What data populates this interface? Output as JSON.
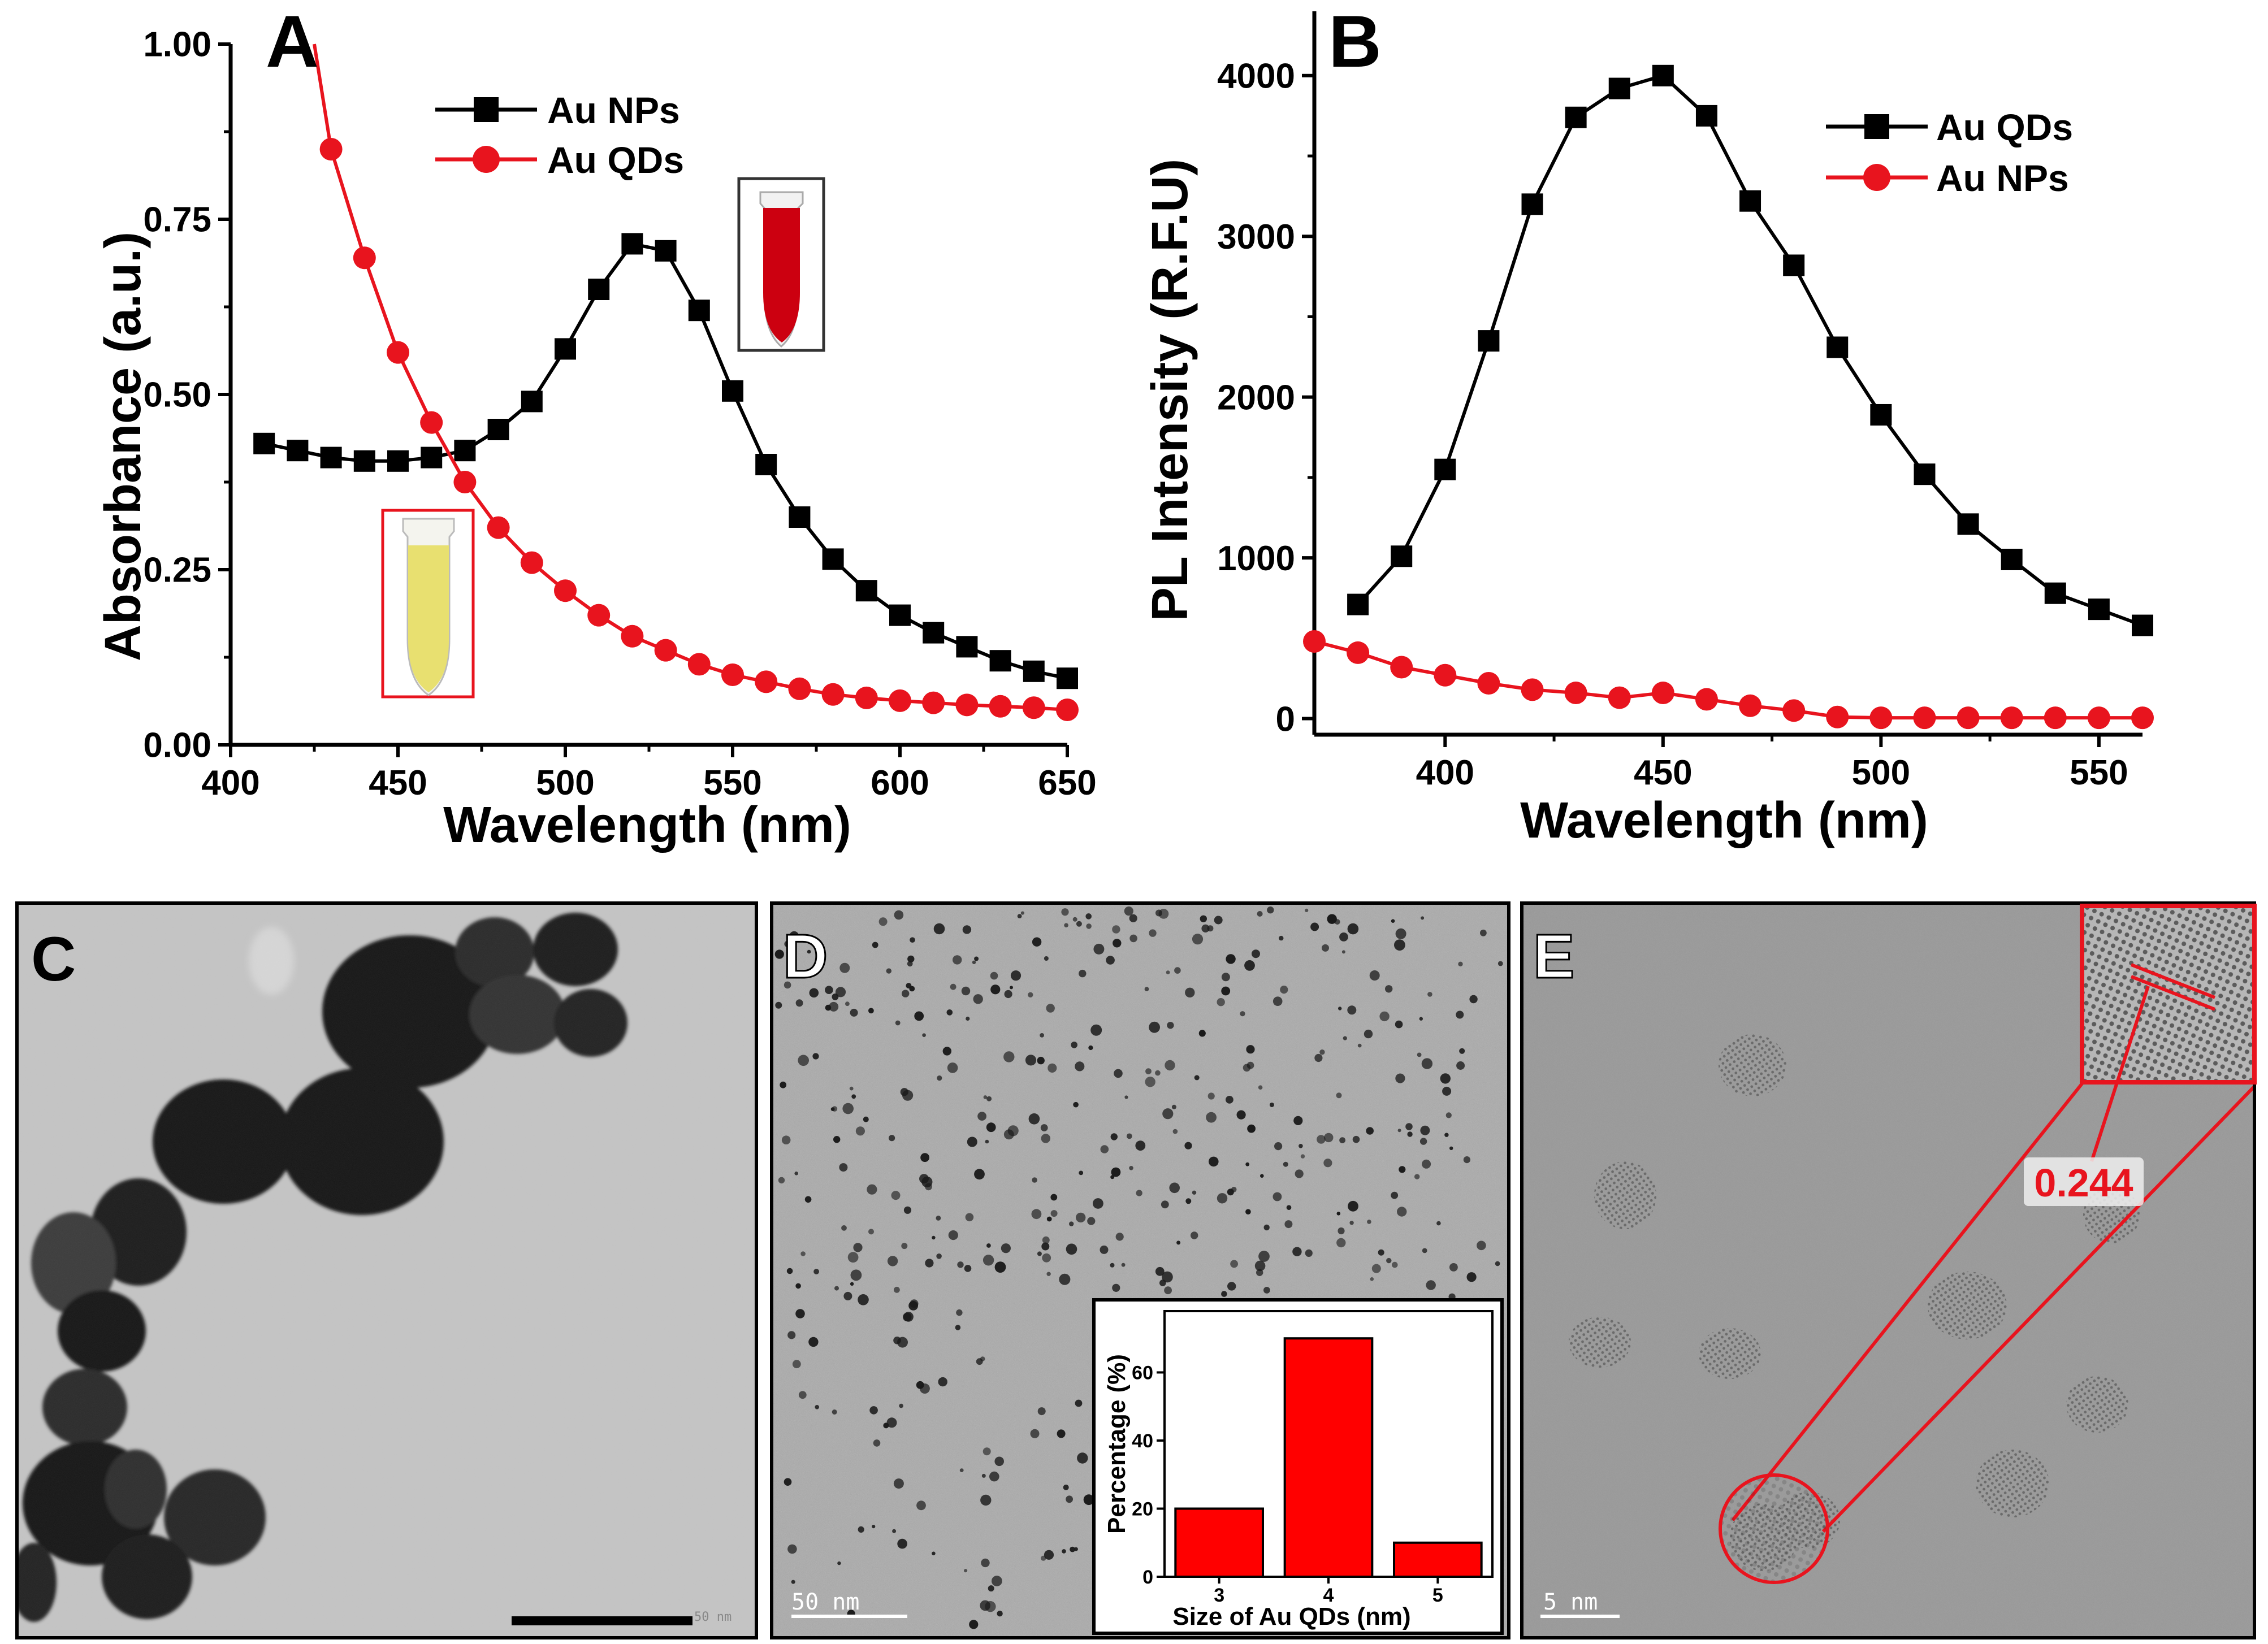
{
  "panels": {
    "A": "A",
    "B": "B",
    "C": "C",
    "D": "D",
    "E": "E"
  },
  "chart_data": [
    {
      "id": "A",
      "type": "line",
      "xlabel": "Wavelength (nm)",
      "ylabel": "Absorbance (a.u.)",
      "xlim": [
        400,
        650
      ],
      "ylim": [
        0,
        1.0
      ],
      "xticks": [
        "400",
        "450",
        "500",
        "550",
        "600",
        "650"
      ],
      "yticks": [
        "0.00",
        "0.25",
        "0.50",
        "0.75",
        "1.00"
      ],
      "legend": [
        "Au NPs",
        "Au QDs"
      ],
      "series": [
        {
          "name": "Au NPs",
          "color": "#000000",
          "marker": "square",
          "x": [
            410,
            420,
            430,
            440,
            450,
            460,
            470,
            480,
            490,
            500,
            510,
            520,
            530,
            540,
            550,
            560,
            570,
            580,
            590,
            600,
            610,
            620,
            630,
            640,
            650
          ],
          "y": [
            0.43,
            0.42,
            0.41,
            0.405,
            0.405,
            0.41,
            0.42,
            0.45,
            0.49,
            0.565,
            0.65,
            0.715,
            0.705,
            0.62,
            0.505,
            0.4,
            0.325,
            0.265,
            0.22,
            0.185,
            0.16,
            0.14,
            0.12,
            0.105,
            0.095
          ]
        },
        {
          "name": "Au QDs",
          "color": "#e8141e",
          "marker": "circle",
          "x": [
            430,
            440,
            450,
            460,
            470,
            480,
            490,
            500,
            510,
            520,
            530,
            540,
            550,
            560,
            570,
            580,
            590,
            600,
            610,
            620,
            630,
            640,
            650
          ],
          "y": [
            0.85,
            0.695,
            0.56,
            0.46,
            0.375,
            0.31,
            0.26,
            0.22,
            0.185,
            0.155,
            0.135,
            0.115,
            0.1,
            0.09,
            0.08,
            0.072,
            0.067,
            0.063,
            0.06,
            0.057,
            0.055,
            0.053,
            0.05
          ]
        }
      ],
      "curve_start": {
        "x": 425,
        "y": 1.0
      }
    },
    {
      "id": "B",
      "type": "line",
      "xlabel": "Wavelength (nm)",
      "ylabel": "PL Intensity (R.F.U)",
      "xlim": [
        370,
        560
      ],
      "ylim": [
        -100,
        4400
      ],
      "xticks": [
        "400",
        "450",
        "500",
        "550"
      ],
      "yticks": [
        "0",
        "1000",
        "2000",
        "3000",
        "4000"
      ],
      "legend": [
        "Au QDs",
        "Au NPs"
      ],
      "series": [
        {
          "name": "Au QDs",
          "color": "#000000",
          "marker": "square",
          "x": [
            380,
            390,
            400,
            410,
            420,
            430,
            440,
            450,
            460,
            470,
            480,
            490,
            500,
            510,
            520,
            530,
            540,
            550,
            560
          ],
          "y": [
            710,
            1010,
            1550,
            2350,
            3200,
            3740,
            3920,
            4000,
            3750,
            3220,
            2820,
            2310,
            1890,
            1520,
            1210,
            990,
            780,
            680,
            580
          ]
        },
        {
          "name": "Au NPs",
          "color": "#e8141e",
          "marker": "circle",
          "x": [
            370,
            380,
            390,
            400,
            410,
            420,
            430,
            440,
            450,
            460,
            470,
            480,
            490,
            500,
            510,
            520,
            530,
            540,
            550,
            560
          ],
          "y": [
            480,
            410,
            320,
            270,
            220,
            180,
            160,
            130,
            160,
            120,
            80,
            50,
            10,
            5,
            5,
            5,
            5,
            5,
            5,
            5
          ]
        }
      ],
      "curve_start": {
        "x": 370,
        "y": 560
      }
    },
    {
      "id": "D-inset",
      "type": "bar",
      "xlabel": "Size of Au QDs (nm)",
      "ylabel": "Percentage (%)",
      "categories": [
        "3",
        "4",
        "5"
      ],
      "values": [
        20,
        70,
        10
      ],
      "ylim": [
        0,
        78
      ],
      "yticks": [
        "0",
        "20",
        "40",
        "60"
      ],
      "color": "#ff0000"
    }
  ],
  "micrographs": {
    "C": {
      "scale_label": "50 nm"
    },
    "D": {
      "scale_label": "50 nm"
    },
    "E": {
      "scale_label": "5 nm",
      "spacing_label": "0.244"
    }
  },
  "vials": {
    "A_red": {
      "color": "#cc0010",
      "frame": "#333333"
    },
    "A_yellow": {
      "color": "#e8e070",
      "frame": "#e8141e"
    }
  }
}
